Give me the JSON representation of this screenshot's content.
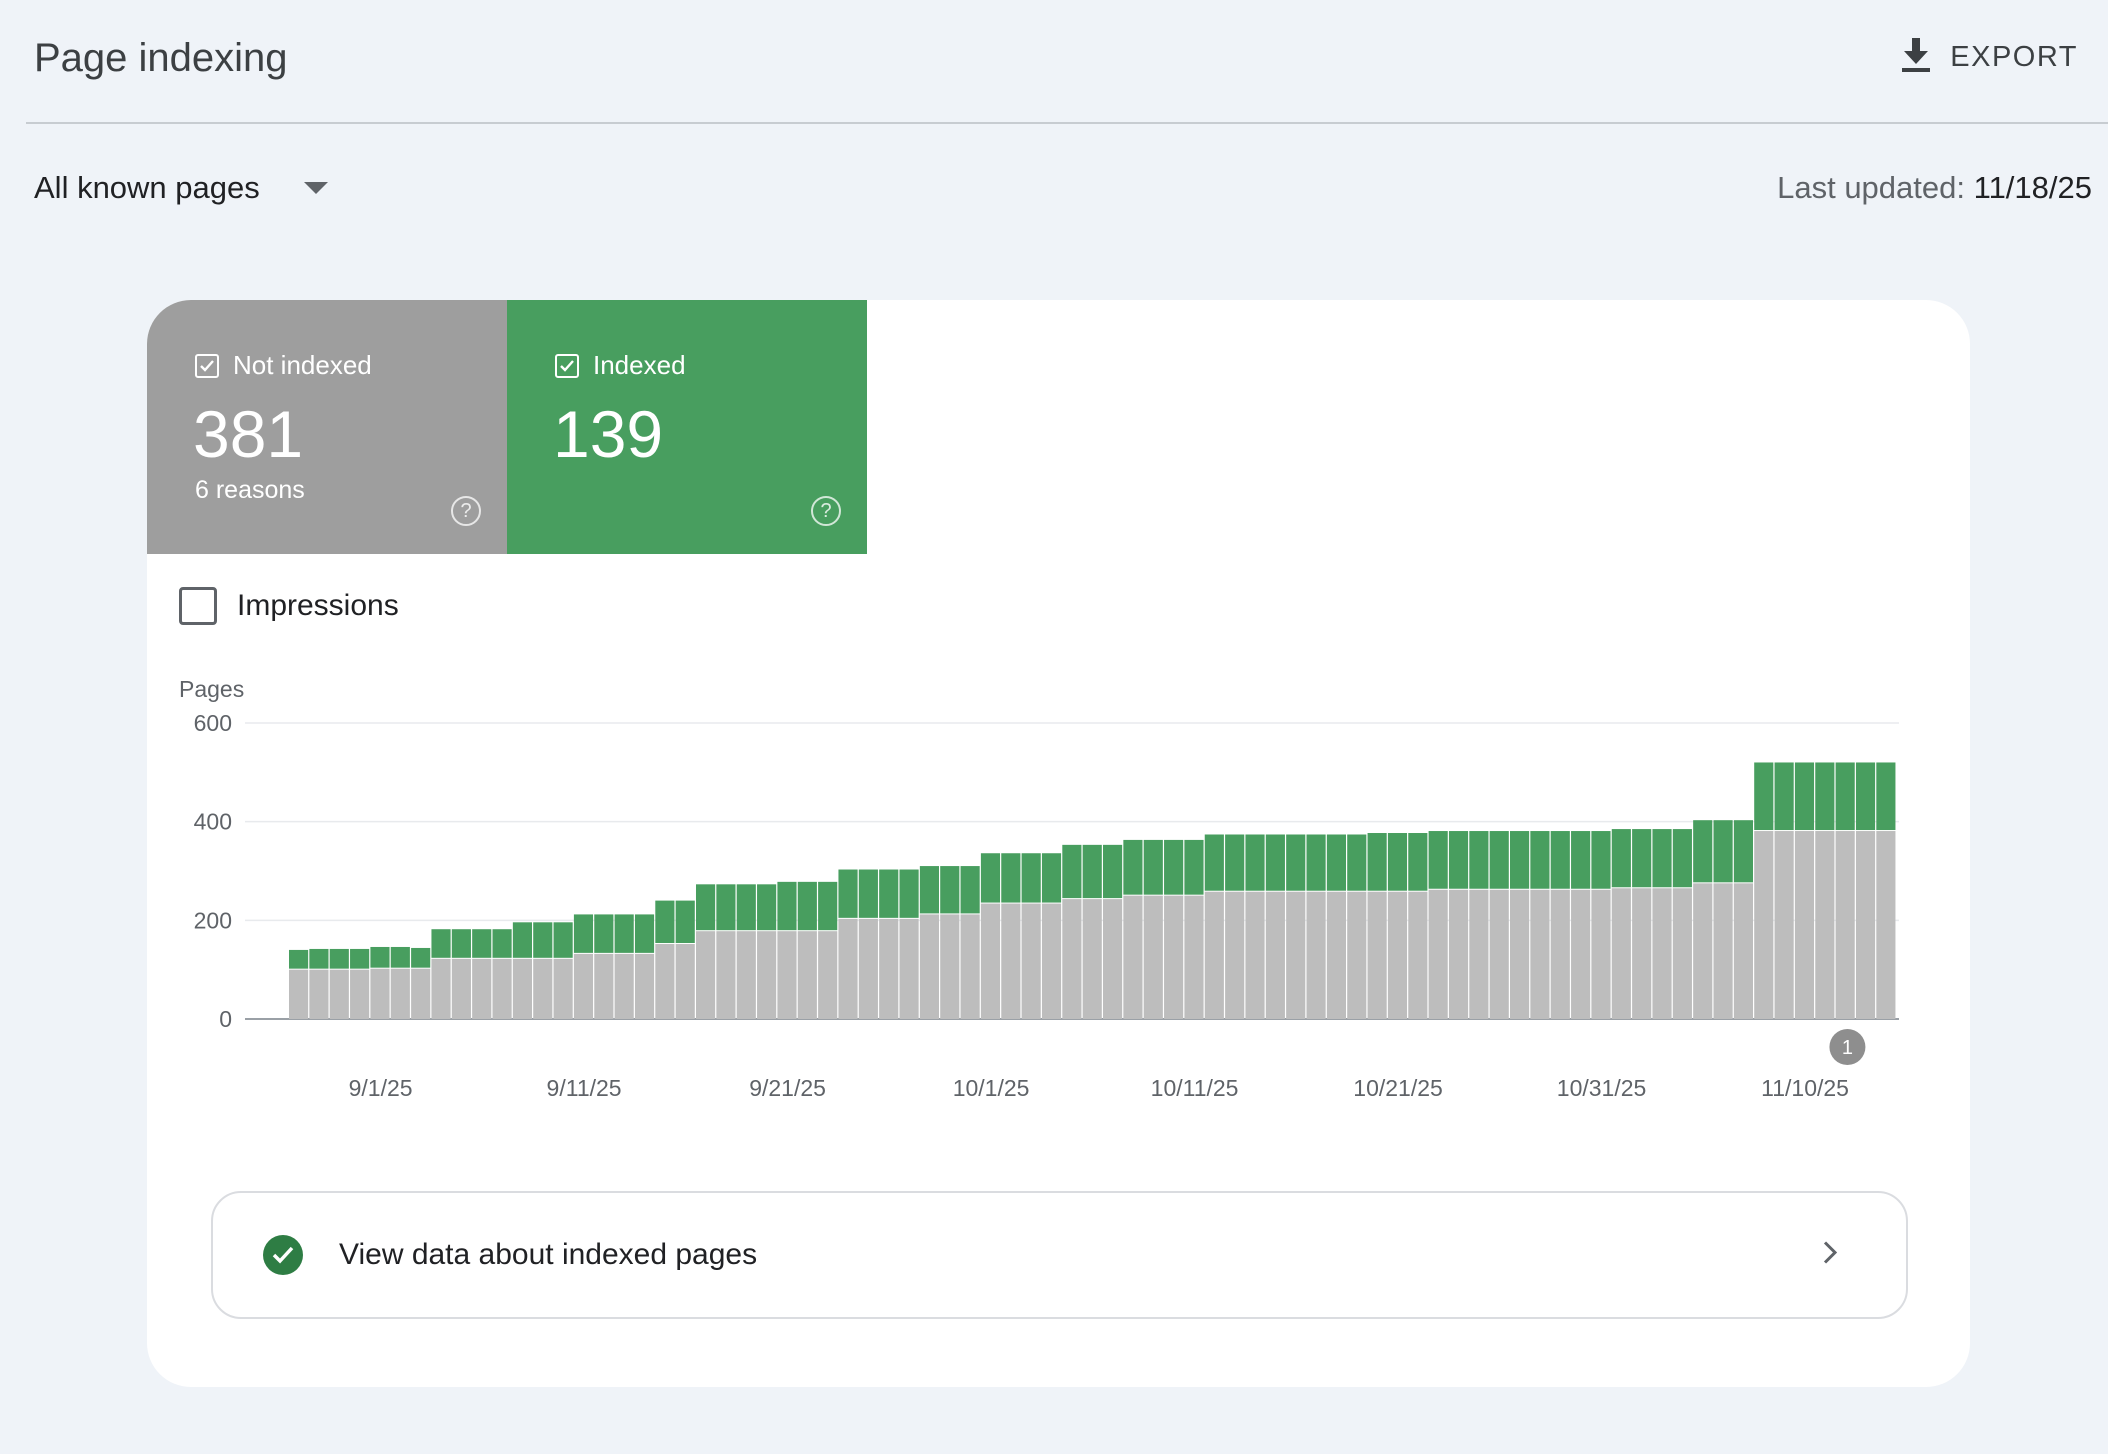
{
  "header": {
    "title": "Page indexing",
    "export_label": "EXPORT"
  },
  "filter": {
    "selected": "All known pages",
    "last_updated_label": "Last updated:",
    "last_updated_value": "11/18/25"
  },
  "tiles": [
    {
      "label": "Not indexed",
      "count": "381",
      "sub": "6 reasons",
      "color": "#9e9e9e"
    },
    {
      "label": "Indexed",
      "count": "139",
      "sub": "",
      "color": "#489e5f"
    }
  ],
  "impressions_label": "Impressions",
  "colors": {
    "indexed": "#489e5f",
    "not_indexed": "#bdbdbd",
    "annotation": "#8e8e8e",
    "check": "#2e7d44"
  },
  "chart_data": {
    "type": "bar",
    "stacked": true,
    "ylabel": "Pages",
    "ylim": [
      0,
      600
    ],
    "yticks": [
      0,
      200,
      400,
      600
    ],
    "xtick_labels": [
      "9/1/25",
      "9/11/25",
      "9/21/25",
      "10/1/25",
      "10/11/25",
      "10/21/25",
      "10/31/25",
      "11/10/25"
    ],
    "x_start": "8/28/25",
    "x_end": "11/15/25",
    "annotation": {
      "label": "1",
      "date": "11/11/25"
    },
    "series": [
      {
        "name": "Not indexed",
        "values": [
          100,
          100,
          100,
          100,
          102,
          102,
          102,
          122,
          122,
          122,
          122,
          122,
          122,
          122,
          132,
          132,
          132,
          132,
          152,
          152,
          178,
          178,
          178,
          178,
          178,
          178,
          178,
          203,
          203,
          203,
          203,
          212,
          212,
          212,
          234,
          234,
          234,
          234,
          243,
          243,
          243,
          250,
          250,
          250,
          250,
          258,
          258,
          258,
          258,
          258,
          258,
          258,
          258,
          258,
          258,
          258,
          262,
          262,
          262,
          262,
          262,
          262,
          262,
          262,
          262,
          265,
          265,
          265,
          265,
          275,
          275,
          275,
          381,
          381,
          381,
          381,
          381,
          381,
          381
        ]
      },
      {
        "name": "Indexed",
        "values": [
          40,
          42,
          42,
          42,
          44,
          44,
          42,
          60,
          60,
          60,
          60,
          74,
          74,
          74,
          80,
          80,
          80,
          80,
          88,
          88,
          95,
          95,
          95,
          95,
          100,
          100,
          100,
          100,
          100,
          100,
          100,
          98,
          98,
          98,
          102,
          102,
          102,
          102,
          110,
          110,
          110,
          113,
          113,
          113,
          113,
          116,
          116,
          116,
          116,
          116,
          116,
          116,
          116,
          119,
          119,
          119,
          119,
          119,
          119,
          119,
          119,
          119,
          119,
          119,
          119,
          120,
          120,
          120,
          120,
          128,
          128,
          128,
          139,
          139,
          139,
          139,
          139,
          139,
          139
        ]
      }
    ]
  },
  "view_data_label": "View data about indexed pages"
}
